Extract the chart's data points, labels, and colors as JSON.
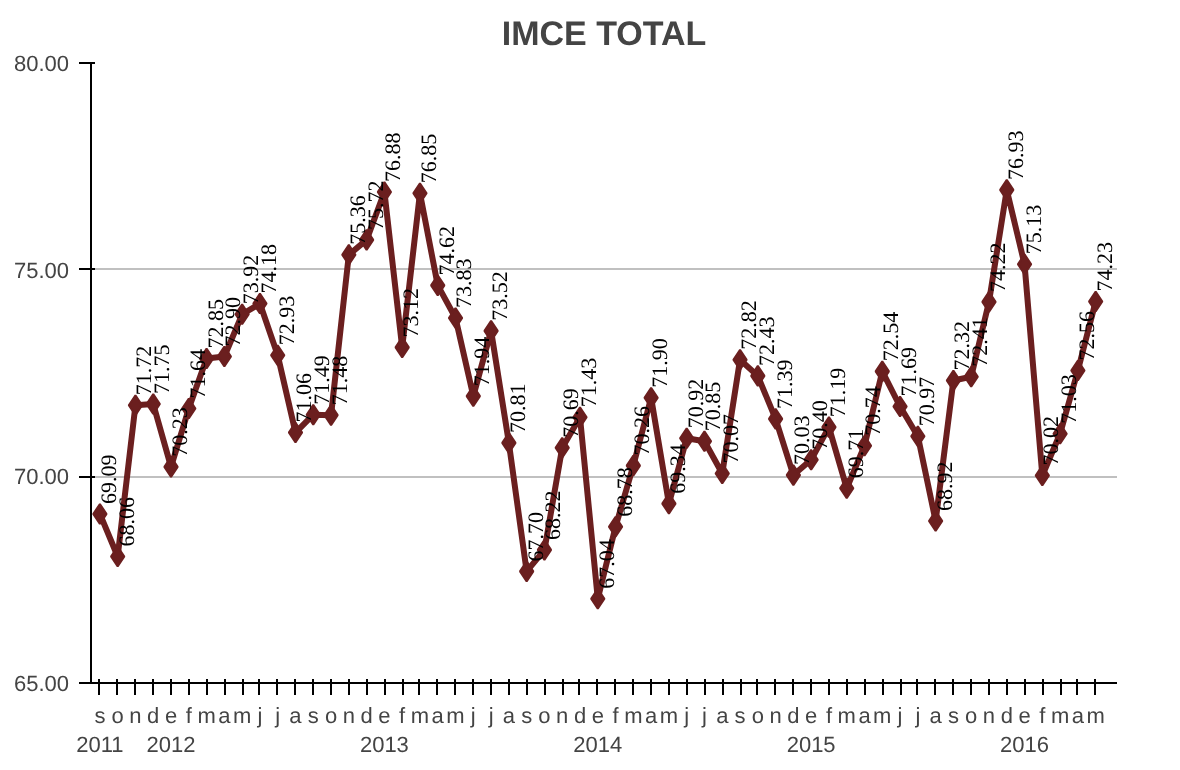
{
  "chart_data": {
    "type": "line",
    "title": "IMCE TOTAL",
    "categories": [
      "s\n2011",
      "o",
      "n",
      "d",
      "e\n2012",
      "f",
      "m",
      "a",
      "m",
      "j",
      "j",
      "a",
      "s",
      "o",
      "n",
      "d",
      "e\n2013",
      "f",
      "m",
      "a",
      "m",
      "j",
      "j",
      "a",
      "s",
      "o",
      "n",
      "d",
      "e\n2014",
      "f",
      "m",
      "a",
      "m",
      "j",
      "j",
      "a",
      "s",
      "o",
      "n",
      "d",
      "e\n2015",
      "f",
      "m",
      "a",
      "m",
      "j",
      "j",
      "a",
      "s",
      "o",
      "n",
      "d",
      "e\n2016",
      "f",
      "m",
      "a",
      "m"
    ],
    "series": [
      {
        "color": "#6b1f1f",
        "value_labels": [
          "69.09",
          "68.06",
          "71.72",
          "71.75",
          "70.23",
          "71.64",
          "72.85",
          "72.90",
          "73.92",
          "74.18",
          "72.93",
          "71.06",
          "71.49",
          "71.48",
          "75.36",
          "75.72",
          "76.88",
          "73.12",
          "76.85",
          "74.62",
          "73.83",
          "71.94",
          "73.52",
          "70.81",
          "67.70",
          "68.22",
          "70.69",
          "71.43",
          "67.04",
          "68.78",
          "70.26",
          "71.90",
          "69.34",
          "70.92",
          "70.85",
          "70.07",
          "72.82",
          "72.43",
          "71.39",
          "70.03",
          "70.40",
          "71.19",
          "69.71",
          "70.74",
          "72.54",
          "71.69",
          "70.97",
          "68.92",
          "72.32",
          "72.41",
          "74.22",
          "76.93",
          "75.13",
          "70.02",
          "71.03",
          "72.56",
          "74.23"
        ],
        "values": [
          69.09,
          68.06,
          71.72,
          71.75,
          70.23,
          71.64,
          72.85,
          72.9,
          73.92,
          74.18,
          72.93,
          71.06,
          71.49,
          71.48,
          75.36,
          75.72,
          76.88,
          73.12,
          76.85,
          74.62,
          73.83,
          71.94,
          73.52,
          70.81,
          67.7,
          68.22,
          70.69,
          71.43,
          67.04,
          68.78,
          70.26,
          71.9,
          69.34,
          70.92,
          70.85,
          70.07,
          72.82,
          72.43,
          71.39,
          70.03,
          70.4,
          71.19,
          69.71,
          70.74,
          72.54,
          71.69,
          70.97,
          68.92,
          72.32,
          72.41,
          74.22,
          76.93,
          75.13,
          70.02,
          71.03,
          72.56,
          74.23
        ]
      }
    ],
    "ylim": [
      65,
      80
    ],
    "yticks": [
      {
        "value": 65,
        "label": "65.00"
      },
      {
        "value": 70,
        "label": "70.00"
      },
      {
        "value": 75,
        "label": "75.00"
      },
      {
        "value": 80,
        "label": "80.00"
      }
    ],
    "grid": "y",
    "marker": "diamond",
    "line_style": "solid"
  }
}
